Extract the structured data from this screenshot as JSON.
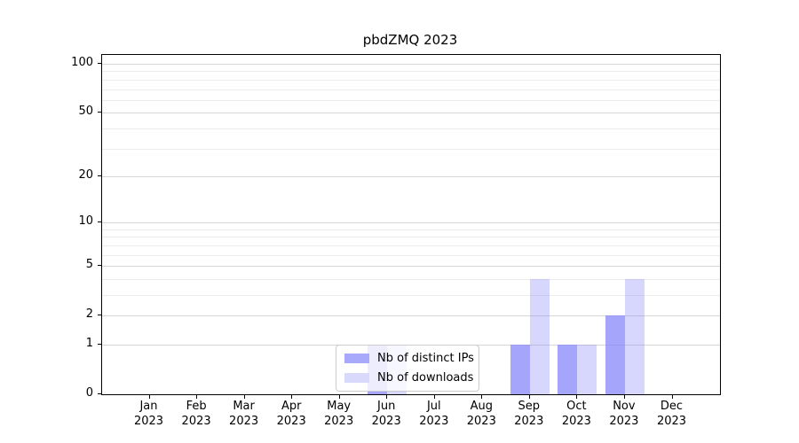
{
  "chart_data": {
    "type": "bar",
    "title": "pbdZMQ 2023",
    "year_label": "2023",
    "categories": [
      "Jan",
      "Feb",
      "Mar",
      "Apr",
      "May",
      "Jun",
      "Jul",
      "Aug",
      "Sep",
      "Oct",
      "Nov",
      "Dec"
    ],
    "series": [
      {
        "name": "Nb of distinct IPs",
        "values": [
          0,
          0,
          0,
          0,
          0,
          1,
          0,
          0,
          1,
          1,
          2,
          0
        ],
        "fill": "rgba(130,130,250,0.72)",
        "legend_swatch": "#a9a9fb"
      },
      {
        "name": "Nb of downloads",
        "values": [
          0,
          0,
          0,
          0,
          0,
          1,
          0,
          0,
          4,
          1,
          4,
          0
        ],
        "fill": "rgba(130,130,250,0.32)",
        "legend_swatch": "#d9d9fb"
      }
    ],
    "yticks": [
      0,
      1,
      2,
      5,
      10,
      20,
      50,
      100
    ],
    "yscale": "log1p",
    "ylim": [
      0,
      100
    ],
    "grid": "horizontal-log-major-minor",
    "legend_position": "inside-bottom-left-of-center",
    "colors": {
      "axis": "#000000",
      "grid_major": "#d6d6d6",
      "grid_minor": "#ececec",
      "legend_border": "#cccccc"
    }
  }
}
